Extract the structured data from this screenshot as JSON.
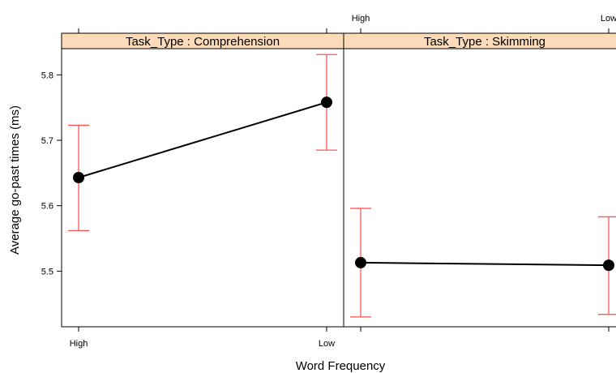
{
  "chart_data": {
    "type": "scatter",
    "xlabel": "Word Frequency",
    "ylabel": "Average go-past times (ms)",
    "categories": [
      "High",
      "Low"
    ],
    "ylim": [
      5.415,
      5.84
    ],
    "yticks": [
      5.5,
      5.6,
      5.7,
      5.8
    ],
    "yticks_labels": [
      "5.5",
      "5.6",
      "5.7",
      "5.8"
    ],
    "legend": "none",
    "grid": false,
    "colors": {
      "strip": "#fcdcb8",
      "errorbar": "#ff5555",
      "line": "#000000",
      "point": "#000000"
    },
    "panels": [
      {
        "strip": "Task_Type : Comprehension",
        "series": [
          {
            "values": [
              5.643,
              5.758
            ],
            "lower": [
              5.562,
              5.685
            ],
            "upper": [
              5.723,
              5.831
            ]
          }
        ]
      },
      {
        "strip": "Task_Type : Skimming",
        "series": [
          {
            "values": [
              5.513,
              5.509
            ],
            "lower": [
              5.43,
              5.434
            ],
            "upper": [
              5.596,
              5.583
            ]
          }
        ]
      }
    ]
  }
}
